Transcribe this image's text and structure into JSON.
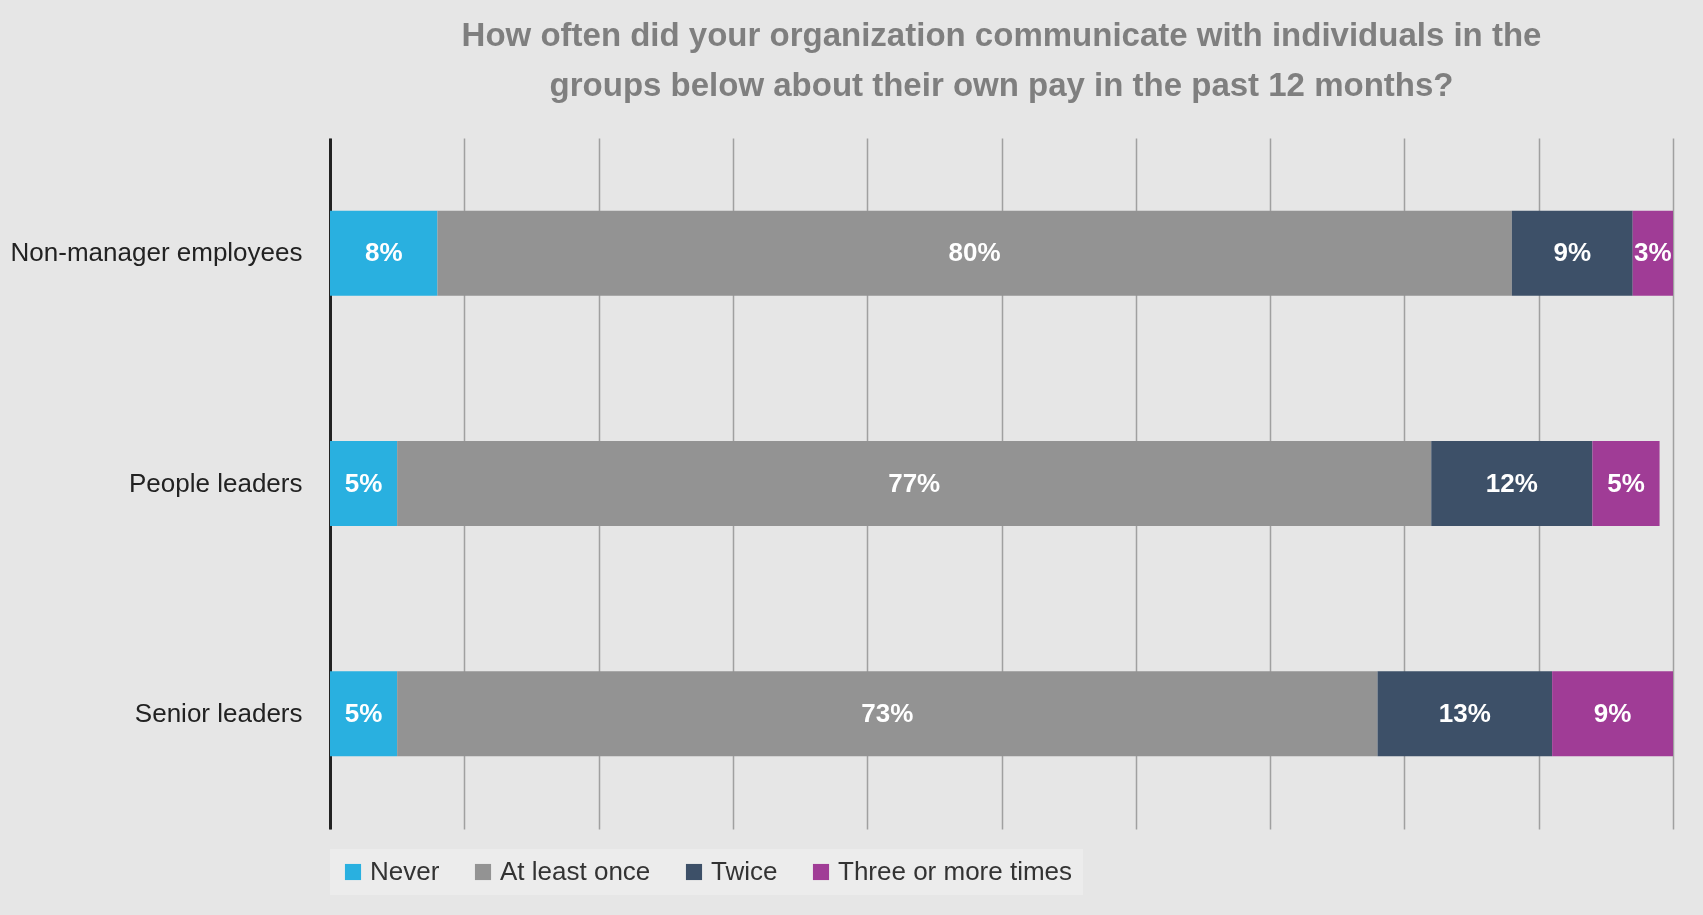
{
  "chart_data": {
    "type": "bar",
    "title": "How often did your organization communicate with individuals in the groups below about their own pay in the past 12 months?",
    "orientation": "horizontal",
    "stacked": true,
    "categories": [
      "Non-manager employees",
      "People leaders",
      "Senior leaders"
    ],
    "series": [
      {
        "name": "Never",
        "color": "#29b0e0",
        "values": [
          8,
          5,
          5
        ],
        "value_labels": [
          "8%",
          "5%",
          "5%"
        ]
      },
      {
        "name": "At least once",
        "color": "#939393",
        "values": [
          80,
          77,
          73
        ],
        "value_labels": [
          "80%",
          "77%",
          "73%"
        ]
      },
      {
        "name": "Twice",
        "color": "#3d5068",
        "values": [
          9,
          12,
          13
        ],
        "value_labels": [
          "9%",
          "12%",
          "13%"
        ]
      },
      {
        "name": "Three or more times",
        "color": "#a03c96",
        "values": [
          3,
          5,
          9
        ],
        "value_labels": [
          "3%",
          "5%",
          "9%"
        ]
      }
    ],
    "grid": "x",
    "legend": "bottom",
    "tick_labels": "y"
  }
}
